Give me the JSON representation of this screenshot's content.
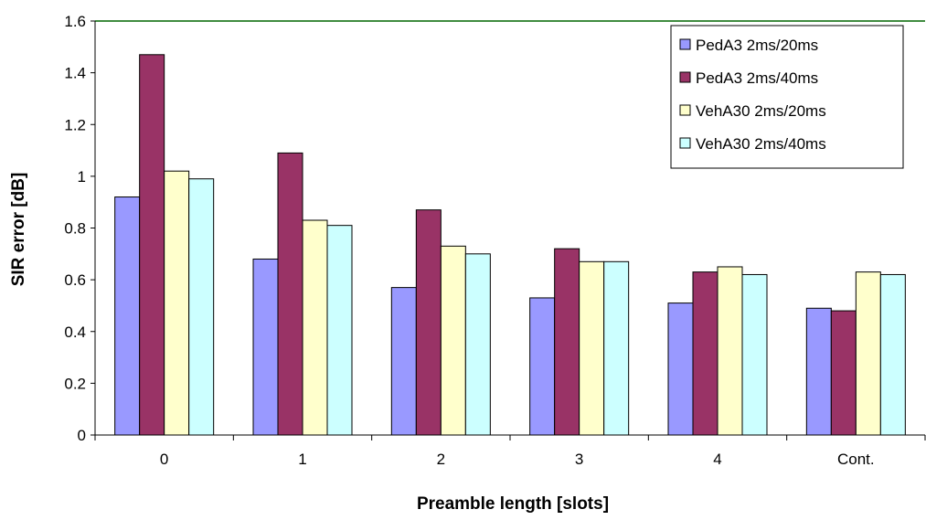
{
  "chart_data": {
    "type": "bar",
    "title": "",
    "xlabel": "Preamble length [slots]",
    "ylabel": "SIR error [dB]",
    "categories": [
      "0",
      "1",
      "2",
      "3",
      "4",
      "Cont."
    ],
    "ylim": [
      0,
      1.6
    ],
    "yticks": [
      "0",
      "0.2",
      "0.4",
      "0.6",
      "0.8",
      "1",
      "1.2",
      "1.4",
      "1.6"
    ],
    "grid": false,
    "legend_position": "top-right",
    "series": [
      {
        "name": "PedA3 2ms/20ms",
        "color": "#9999ff",
        "values": [
          0.92,
          0.68,
          0.57,
          0.53,
          0.51,
          0.49
        ]
      },
      {
        "name": "PedA3 2ms/40ms",
        "color": "#993366",
        "values": [
          1.47,
          1.09,
          0.87,
          0.72,
          0.63,
          0.48
        ]
      },
      {
        "name": "VehA30 2ms/20ms",
        "color": "#ffffcc",
        "values": [
          1.02,
          0.83,
          0.73,
          0.67,
          0.65,
          0.63
        ]
      },
      {
        "name": "VehA30 2ms/40ms",
        "color": "#ccffff",
        "values": [
          0.99,
          0.81,
          0.7,
          0.67,
          0.62,
          0.62
        ]
      }
    ],
    "axis_color": "#000000",
    "top_border_color": "#006600"
  }
}
